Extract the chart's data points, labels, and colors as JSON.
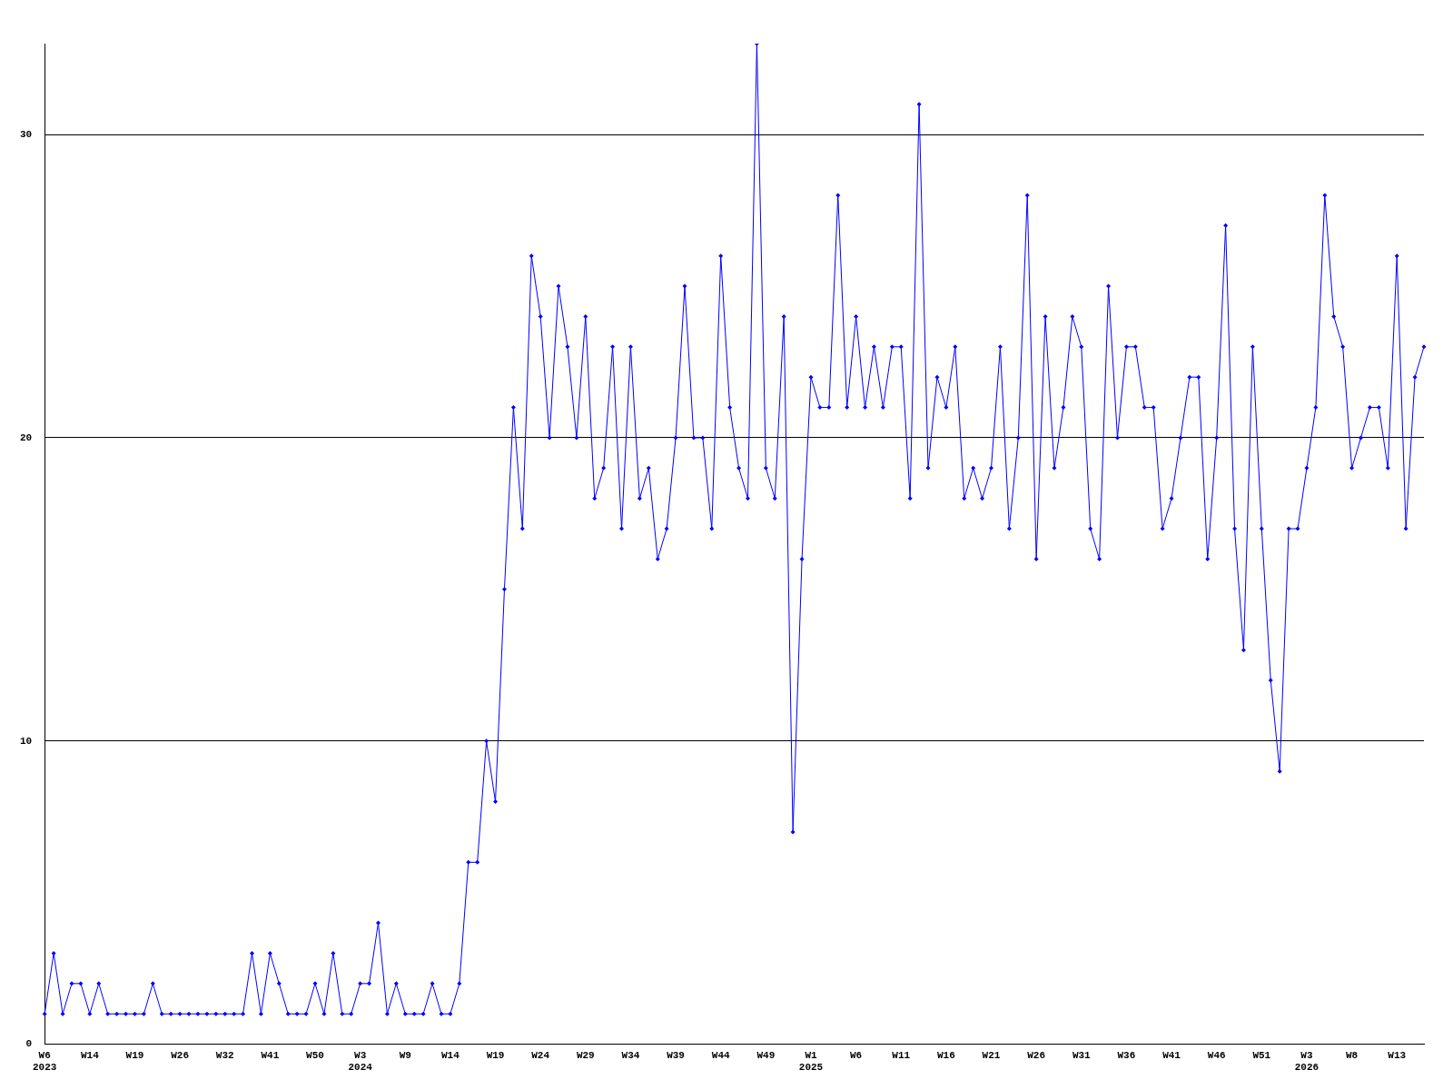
{
  "chart_data": {
    "type": "line",
    "categories": [
      "W6\n2023",
      null,
      null,
      null,
      null,
      "W14",
      null,
      null,
      null,
      null,
      "W19",
      null,
      null,
      null,
      null,
      "W26",
      null,
      null,
      null,
      null,
      "W32",
      null,
      null,
      null,
      null,
      "W41",
      null,
      null,
      null,
      null,
      "W50",
      null,
      null,
      null,
      null,
      "W3\n2024",
      null,
      null,
      null,
      null,
      "W9",
      null,
      null,
      null,
      null,
      "W14",
      null,
      null,
      null,
      null,
      "W19",
      null,
      null,
      null,
      null,
      "W24",
      null,
      null,
      null,
      null,
      "W29",
      null,
      null,
      null,
      null,
      "W34",
      null,
      null,
      null,
      null,
      "W39",
      null,
      null,
      null,
      null,
      "W44",
      null,
      null,
      null,
      null,
      "W49",
      null,
      null,
      null,
      null,
      "W1\n2025",
      null,
      null,
      null,
      null,
      "W6",
      null,
      null,
      null,
      null,
      "W11",
      null,
      null,
      null,
      null,
      "W16",
      null,
      null,
      null,
      null,
      "W21",
      null,
      null,
      null,
      null,
      "W26",
      null,
      null,
      null,
      null,
      "W31",
      null,
      null,
      null,
      null,
      "W36",
      null,
      null,
      null,
      null,
      "W41",
      null,
      null,
      null,
      null,
      "W46",
      null,
      null,
      null,
      null,
      "W51",
      null,
      null,
      null,
      null,
      "W3\n2026",
      null,
      null,
      null,
      null,
      "W8",
      null,
      null,
      null,
      null,
      "W13",
      null,
      null,
      null
    ],
    "series": [
      {
        "color": "#0000ff",
        "values": [
          1,
          3,
          1,
          2,
          2,
          1,
          2,
          1,
          1,
          1,
          1,
          1,
          2,
          1,
          1,
          1,
          1,
          1,
          1,
          1,
          1,
          1,
          1,
          3,
          1,
          3,
          2,
          1,
          1,
          1,
          2,
          1,
          3,
          1,
          1,
          2,
          2,
          4,
          1,
          2,
          1,
          1,
          1,
          2,
          1,
          1,
          2,
          6,
          6,
          10,
          8,
          15,
          21,
          17,
          26,
          24,
          20,
          25,
          23,
          20,
          24,
          18,
          19,
          23,
          17,
          23,
          18,
          19,
          16,
          17,
          20,
          25,
          20,
          20,
          17,
          26,
          21,
          19,
          18,
          33,
          19,
          18,
          24,
          7,
          16,
          22,
          21,
          21,
          28,
          21,
          24,
          21,
          23,
          21,
          23,
          23,
          18,
          31,
          19,
          22,
          21,
          23,
          18,
          19,
          18,
          19,
          23,
          17,
          20,
          28,
          16,
          24,
          19,
          21,
          24,
          23,
          17,
          16,
          25,
          20,
          23,
          23,
          21,
          21,
          17,
          18,
          20,
          22,
          22,
          16,
          20,
          27,
          17,
          13,
          23,
          17,
          12,
          9,
          17,
          17,
          19,
          21,
          28,
          24,
          23,
          19,
          20,
          21,
          21,
          19,
          26,
          17,
          22,
          23
        ]
      }
    ],
    "ylim": [
      0,
      33
    ],
    "yticks": [
      0,
      10,
      20,
      30
    ],
    "grid": "y",
    "legend": false,
    "marker": "diamond",
    "line_style": "solid"
  }
}
